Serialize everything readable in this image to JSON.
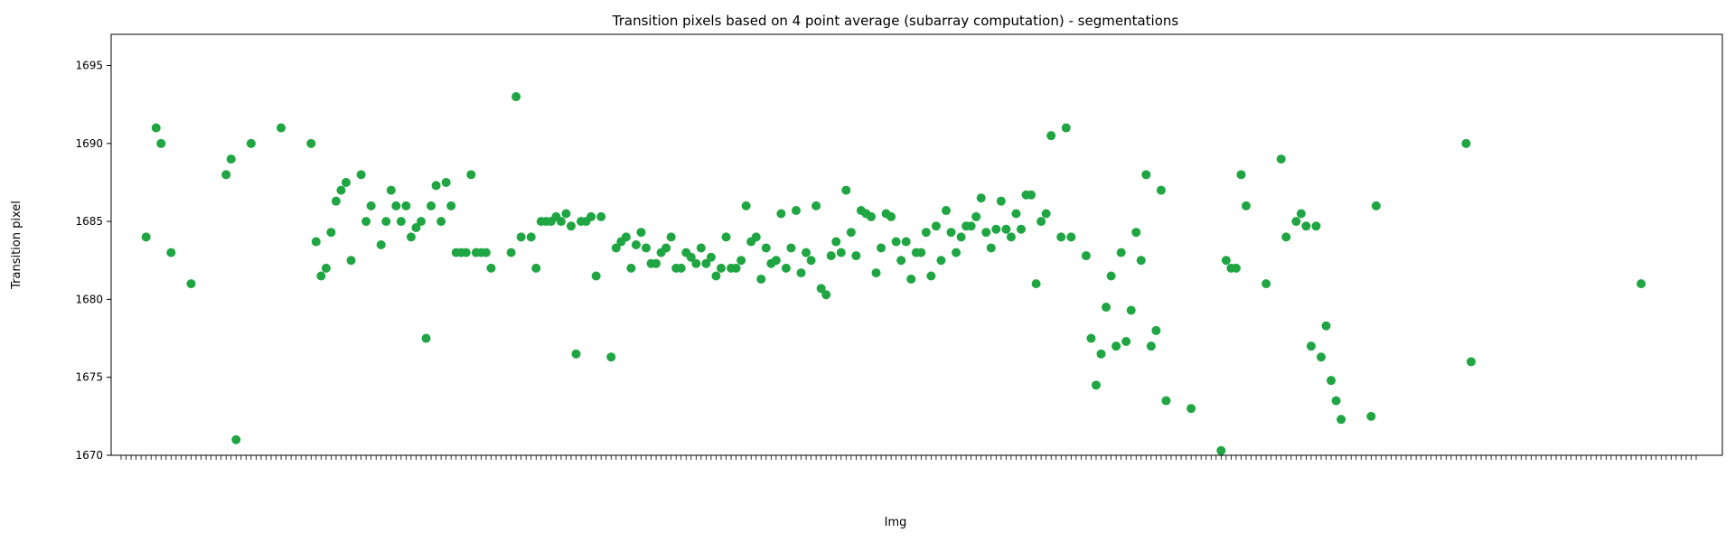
{
  "chart_data": {
    "type": "scatter",
    "title": "Transition pixels based on 4 point average (subarray computation) - segmentations",
    "xlabel": "Img",
    "ylabel": "Transition pixel",
    "ylim": [
      1670,
      1697
    ],
    "yticks": [
      1670,
      1675,
      1680,
      1685,
      1690,
      1695
    ],
    "grid": false,
    "color": "#1fa642",
    "n_categories": 316,
    "series": [
      {
        "points": [
          [
            5,
            1684
          ],
          [
            7,
            1691
          ],
          [
            8,
            1690
          ],
          [
            10,
            1683
          ],
          [
            14,
            1681
          ],
          [
            21,
            1688
          ],
          [
            22,
            1689
          ],
          [
            23,
            1671
          ],
          [
            26,
            1690
          ],
          [
            32,
            1691
          ],
          [
            38,
            1690
          ],
          [
            39,
            1683.7
          ],
          [
            40,
            1681.5
          ],
          [
            41,
            1682
          ],
          [
            42,
            1684.3
          ],
          [
            43,
            1686.3
          ],
          [
            44,
            1687
          ],
          [
            45,
            1687.5
          ],
          [
            46,
            1682.5
          ],
          [
            48,
            1688
          ],
          [
            49,
            1685
          ],
          [
            50,
            1686
          ],
          [
            52,
            1683.5
          ],
          [
            53,
            1685
          ],
          [
            54,
            1687
          ],
          [
            55,
            1686
          ],
          [
            56,
            1685
          ],
          [
            57,
            1686
          ],
          [
            58,
            1684
          ],
          [
            59,
            1684.6
          ],
          [
            60,
            1685
          ],
          [
            61,
            1677.5
          ],
          [
            62,
            1686
          ],
          [
            63,
            1687.3
          ],
          [
            64,
            1685
          ],
          [
            65,
            1687.5
          ],
          [
            66,
            1686
          ],
          [
            67,
            1683
          ],
          [
            68,
            1683
          ],
          [
            69,
            1683
          ],
          [
            70,
            1688
          ],
          [
            71,
            1683
          ],
          [
            72,
            1683
          ],
          [
            73,
            1683
          ],
          [
            74,
            1682
          ],
          [
            78,
            1683
          ],
          [
            79,
            1693
          ],
          [
            80,
            1684
          ],
          [
            82,
            1684
          ],
          [
            83,
            1682
          ],
          [
            84,
            1685
          ],
          [
            85,
            1685
          ],
          [
            86,
            1685
          ],
          [
            87,
            1685.3
          ],
          [
            88,
            1685
          ],
          [
            89,
            1685.5
          ],
          [
            90,
            1684.7
          ],
          [
            91,
            1676.5
          ],
          [
            92,
            1685
          ],
          [
            93,
            1685
          ],
          [
            94,
            1685.3
          ],
          [
            95,
            1681.5
          ],
          [
            96,
            1685.3
          ],
          [
            98,
            1676.3
          ],
          [
            99,
            1683.3
          ],
          [
            100,
            1683.7
          ],
          [
            101,
            1684
          ],
          [
            102,
            1682
          ],
          [
            103,
            1683.5
          ],
          [
            104,
            1684.3
          ],
          [
            105,
            1683.3
          ],
          [
            106,
            1682.3
          ],
          [
            107,
            1682.3
          ],
          [
            108,
            1683
          ],
          [
            109,
            1683.3
          ],
          [
            110,
            1684
          ],
          [
            111,
            1682
          ],
          [
            112,
            1682
          ],
          [
            113,
            1683
          ],
          [
            114,
            1682.7
          ],
          [
            115,
            1682.3
          ],
          [
            116,
            1683.3
          ],
          [
            117,
            1682.3
          ],
          [
            118,
            1682.7
          ],
          [
            119,
            1681.5
          ],
          [
            120,
            1682
          ],
          [
            121,
            1684
          ],
          [
            122,
            1682
          ],
          [
            123,
            1682
          ],
          [
            124,
            1682.5
          ],
          [
            125,
            1686
          ],
          [
            126,
            1683.7
          ],
          [
            127,
            1684
          ],
          [
            128,
            1681.3
          ],
          [
            129,
            1683.3
          ],
          [
            130,
            1682.3
          ],
          [
            131,
            1682.5
          ],
          [
            132,
            1685.5
          ],
          [
            133,
            1682
          ],
          [
            134,
            1683.3
          ],
          [
            135,
            1685.7
          ],
          [
            136,
            1681.7
          ],
          [
            137,
            1683
          ],
          [
            138,
            1682.5
          ],
          [
            139,
            1686
          ],
          [
            140,
            1680.7
          ],
          [
            141,
            1680.3
          ],
          [
            142,
            1682.8
          ],
          [
            143,
            1683.7
          ],
          [
            144,
            1683
          ],
          [
            145,
            1687
          ],
          [
            146,
            1684.3
          ],
          [
            147,
            1682.8
          ],
          [
            148,
            1685.7
          ],
          [
            149,
            1685.5
          ],
          [
            150,
            1685.3
          ],
          [
            151,
            1681.7
          ],
          [
            152,
            1683.3
          ],
          [
            153,
            1685.5
          ],
          [
            154,
            1685.3
          ],
          [
            155,
            1683.7
          ],
          [
            156,
            1682.5
          ],
          [
            157,
            1683.7
          ],
          [
            158,
            1681.3
          ],
          [
            159,
            1683
          ],
          [
            160,
            1683
          ],
          [
            161,
            1684.3
          ],
          [
            162,
            1681.5
          ],
          [
            163,
            1684.7
          ],
          [
            164,
            1682.5
          ],
          [
            165,
            1685.7
          ],
          [
            166,
            1684.3
          ],
          [
            167,
            1683
          ],
          [
            168,
            1684
          ],
          [
            169,
            1684.7
          ],
          [
            170,
            1684.7
          ],
          [
            171,
            1685.3
          ],
          [
            172,
            1686.5
          ],
          [
            173,
            1684.3
          ],
          [
            174,
            1683.3
          ],
          [
            175,
            1684.5
          ],
          [
            176,
            1686.3
          ],
          [
            177,
            1684.5
          ],
          [
            178,
            1684
          ],
          [
            179,
            1685.5
          ],
          [
            180,
            1684.5
          ],
          [
            181,
            1686.7
          ],
          [
            182,
            1686.7
          ],
          [
            183,
            1681
          ],
          [
            184,
            1685
          ],
          [
            185,
            1685.5
          ],
          [
            186,
            1690.5
          ],
          [
            188,
            1684
          ],
          [
            189,
            1691
          ],
          [
            190,
            1684
          ],
          [
            193,
            1682.8
          ],
          [
            194,
            1677.5
          ],
          [
            195,
            1674.5
          ],
          [
            196,
            1676.5
          ],
          [
            197,
            1679.5
          ],
          [
            198,
            1681.5
          ],
          [
            199,
            1677
          ],
          [
            200,
            1683
          ],
          [
            201,
            1677.3
          ],
          [
            202,
            1679.3
          ],
          [
            203,
            1684.3
          ],
          [
            204,
            1682.5
          ],
          [
            205,
            1688
          ],
          [
            206,
            1677
          ],
          [
            207,
            1678
          ],
          [
            208,
            1687
          ],
          [
            209,
            1673.5
          ],
          [
            214,
            1673
          ],
          [
            220,
            1670.3
          ],
          [
            221,
            1682.5
          ],
          [
            222,
            1682
          ],
          [
            223,
            1682
          ],
          [
            224,
            1688
          ],
          [
            225,
            1686
          ],
          [
            229,
            1681
          ],
          [
            232,
            1689
          ],
          [
            233,
            1684
          ],
          [
            235,
            1685
          ],
          [
            236,
            1685.5
          ],
          [
            237,
            1684.7
          ],
          [
            238,
            1677
          ],
          [
            239,
            1684.7
          ],
          [
            240,
            1676.3
          ],
          [
            241,
            1678.3
          ],
          [
            242,
            1674.8
          ],
          [
            243,
            1673.5
          ],
          [
            244,
            1672.3
          ],
          [
            250,
            1672.5
          ],
          [
            251,
            1686
          ],
          [
            269,
            1690
          ],
          [
            270,
            1676
          ],
          [
            304,
            1681
          ]
        ]
      }
    ]
  }
}
